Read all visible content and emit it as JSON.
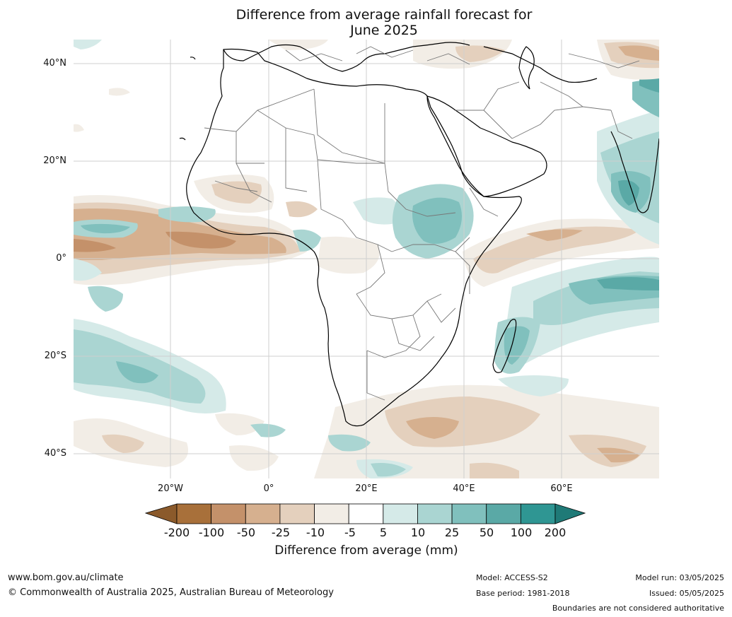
{
  "title_line1": "Difference from average rainfall forecast for",
  "title_line2": "June 2025",
  "lat_labels": [
    "40°N",
    "20°N",
    "0°",
    "20°S",
    "40°S"
  ],
  "lon_labels": [
    "20°W",
    "0°",
    "20°E",
    "40°E",
    "60°E"
  ],
  "colorbar": {
    "ticks": [
      "-200",
      "-100",
      "-50",
      "-25",
      "-10",
      "-5",
      "5",
      "10",
      "25",
      "50",
      "100",
      "200"
    ],
    "colors": [
      "#a8703a",
      "#c4916a",
      "#d6b08f",
      "#e4d0bd",
      "#f2ede6",
      "#ffffff",
      "#d5eae8",
      "#aad5d2",
      "#80c0bd",
      "#5aa9a6",
      "#2f9693"
    ],
    "end_low": "#8b5a2b",
    "end_high": "#1f7a77",
    "label": "Difference from average (mm)"
  },
  "footer": {
    "website": "www.bom.gov.au/climate",
    "copyright": "© Commonwealth of Australia 2025, Australian Bureau of Meteorology",
    "model": "Model: ACCESS-S2",
    "base_period": "Base period: 1981-2018",
    "model_run": "Model run: 03/05/2025",
    "issued": "Issued: 05/05/2025",
    "disclaimer": "Boundaries are not considered authoritative"
  }
}
